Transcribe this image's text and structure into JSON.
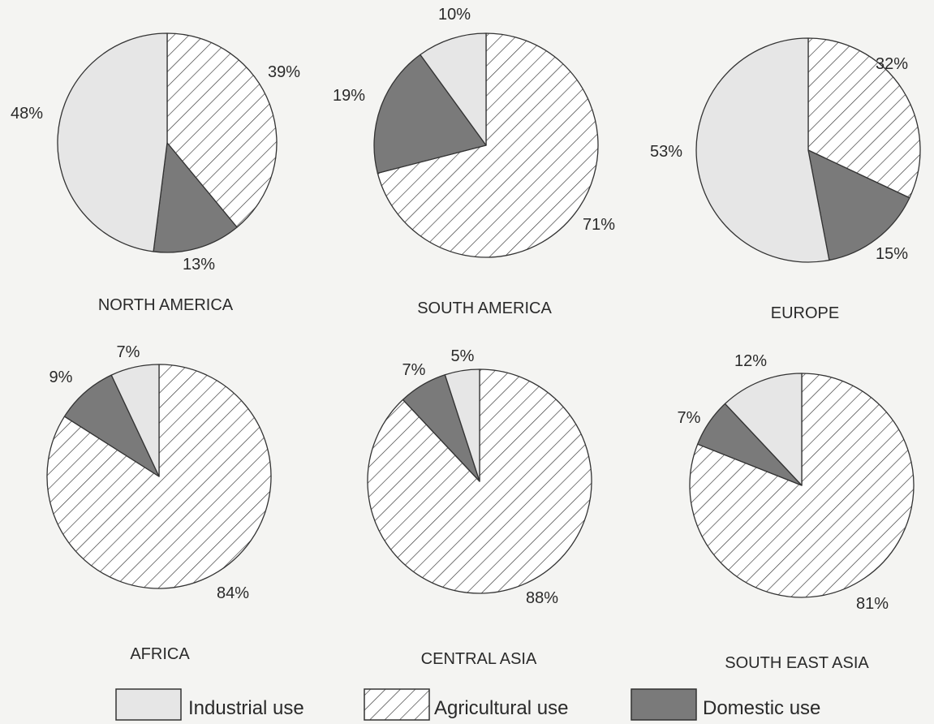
{
  "legend": [
    {
      "key": "industrial",
      "label": "Industrial use",
      "color": "#e6e6e6"
    },
    {
      "key": "agricultural",
      "label": "Agricultural use",
      "color": "hatch"
    },
    {
      "key": "domestic",
      "label": "Domestic use",
      "color": "#7a7a7a"
    }
  ],
  "chart_data": [
    {
      "type": "pie",
      "title": "NORTH AMERICA",
      "categories": [
        "Agricultural use",
        "Domestic use",
        "Industrial use"
      ],
      "values": [
        39,
        13,
        48
      ],
      "labels": [
        "39%",
        "13%",
        "48%"
      ]
    },
    {
      "type": "pie",
      "title": "SOUTH AMERICA",
      "categories": [
        "Agricultural use",
        "Domestic use",
        "Industrial use"
      ],
      "values": [
        71,
        19,
        10
      ],
      "labels": [
        "71%",
        "19%",
        "10%"
      ]
    },
    {
      "type": "pie",
      "title": "EUROPE",
      "categories": [
        "Agricultural use",
        "Domestic use",
        "Industrial use"
      ],
      "values": [
        32,
        15,
        53
      ],
      "labels": [
        "32%",
        "15%",
        "53%"
      ]
    },
    {
      "type": "pie",
      "title": "AFRICA",
      "categories": [
        "Agricultural use",
        "Domestic use",
        "Industrial use"
      ],
      "values": [
        84,
        9,
        7
      ],
      "labels": [
        "84%",
        "9%",
        "7%"
      ]
    },
    {
      "type": "pie",
      "title": "CENTRAL ASIA",
      "categories": [
        "Agricultural use",
        "Domestic use",
        "Industrial use"
      ],
      "values": [
        88,
        7,
        5
      ],
      "labels": [
        "88%",
        "7%",
        "5%"
      ]
    },
    {
      "type": "pie",
      "title": "SOUTH EAST ASIA",
      "categories": [
        "Agricultural use",
        "Domestic use",
        "Industrial use"
      ],
      "values": [
        81,
        7,
        12
      ],
      "labels": [
        "81%",
        "7%",
        "12%"
      ]
    }
  ]
}
